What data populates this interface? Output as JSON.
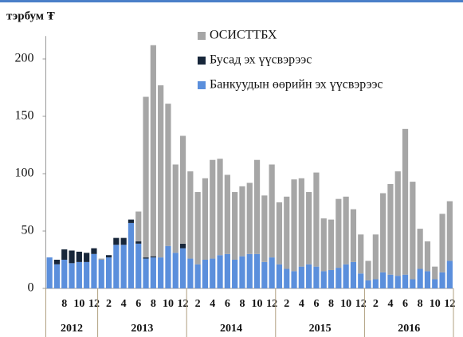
{
  "chart_data": {
    "type": "stacked_bar",
    "title": "тэрбум ₮",
    "categories": [
      null,
      null,
      "8",
      null,
      "10",
      null,
      "12",
      null,
      "2",
      null,
      "4",
      null,
      "6",
      null,
      "8",
      null,
      "10",
      null,
      "12",
      null,
      "2",
      null,
      "4",
      null,
      "6",
      null,
      "8",
      null,
      "10",
      null,
      "12",
      null,
      "2",
      null,
      "4",
      null,
      "6",
      null,
      "8",
      null,
      "10",
      null,
      "12",
      null,
      "2",
      null,
      "4",
      null,
      "6",
      null,
      "8",
      null,
      "10",
      null,
      "12"
    ],
    "years": [
      "2012",
      "2013",
      "2014",
      "2015",
      "2016"
    ],
    "series": [
      {
        "name": "Банкуудын өөрийн эх үүсвэрээс",
        "color": "#5b8fdc",
        "values": [
          27,
          21,
          25,
          22,
          23,
          23,
          30,
          25,
          27,
          38,
          38,
          57,
          39,
          26,
          27,
          27,
          37,
          31,
          35,
          26,
          21,
          25,
          26,
          29,
          30,
          25,
          28,
          30,
          30,
          23,
          27,
          21,
          17,
          15,
          19,
          21,
          19,
          15,
          16,
          18,
          21,
          23,
          13,
          7,
          8,
          14,
          12,
          11,
          12,
          8,
          17,
          15,
          8,
          14,
          24
        ]
      },
      {
        "name": "Бусад эх үүсвэрээс",
        "color": "#17263a",
        "values": [
          0,
          4,
          9,
          11,
          9,
          8,
          5,
          0,
          2,
          6,
          6,
          3,
          2,
          1,
          1,
          0,
          0,
          0,
          4,
          0,
          0,
          0,
          0,
          0,
          0,
          0,
          0,
          0,
          0,
          0,
          0,
          0,
          0,
          0,
          0,
          0,
          0,
          0,
          0,
          0,
          0,
          0,
          0,
          0,
          0,
          0,
          0,
          0,
          0,
          0,
          0,
          0,
          0,
          0,
          0
        ]
      },
      {
        "name": "ОСИСТТБХ",
        "color": "#a6a6a6",
        "values": [
          0,
          0,
          0,
          0,
          0,
          0,
          0,
          1,
          0,
          0,
          0,
          0,
          26,
          140,
          184,
          150,
          124,
          77,
          94,
          76,
          63,
          71,
          86,
          84,
          69,
          59,
          61,
          62,
          82,
          58,
          81,
          54,
          63,
          80,
          77,
          63,
          82,
          46,
          44,
          60,
          59,
          46,
          34,
          17,
          39,
          69,
          79,
          91,
          127,
          85,
          35,
          26,
          11,
          51,
          52
        ]
      }
    ],
    "ylim": [
      0,
      220
    ],
    "yticks": [
      0,
      50,
      100,
      150,
      200
    ]
  }
}
